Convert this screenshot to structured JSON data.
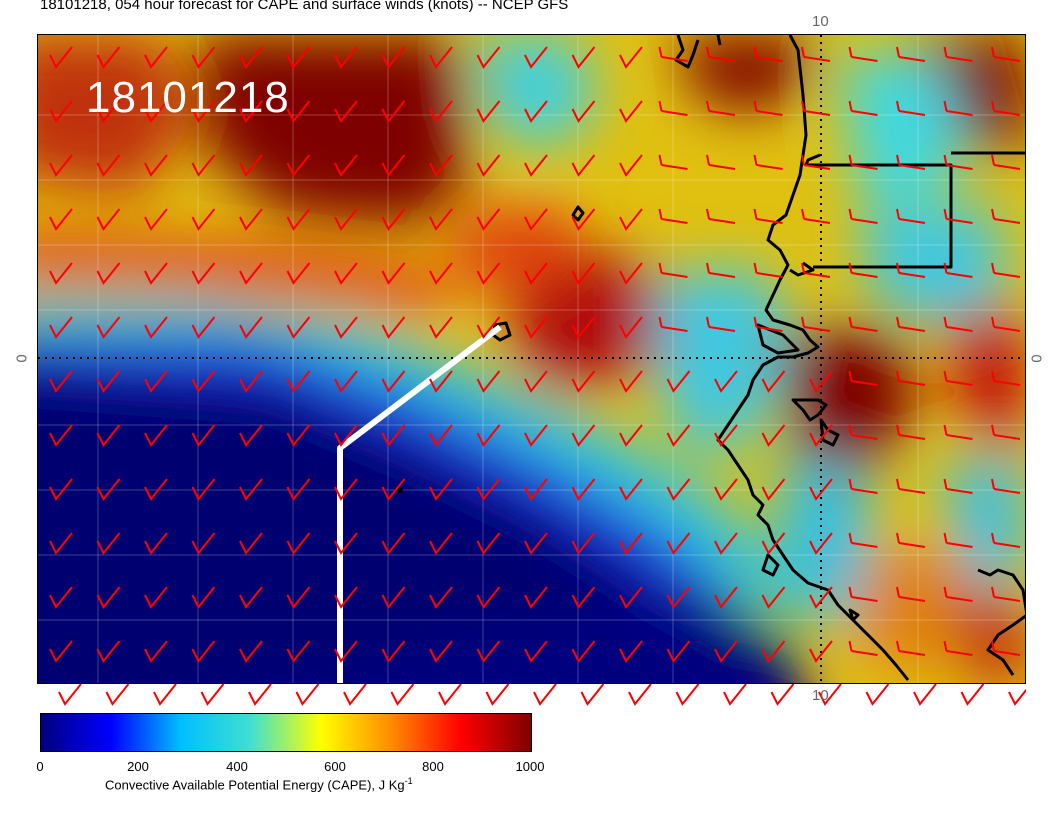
{
  "title": "18101218, 054 hour forecast for CAPE and surface winds (knots) -- NCEP GFS",
  "date_stamp": "18101218",
  "axis_labels": {
    "top_lon": "10",
    "bottom_lon": "10",
    "left_lat": "0",
    "right_lat": "0"
  },
  "colorbar": {
    "ticks": [
      "0",
      "200",
      "400",
      "600",
      "800",
      "1000"
    ],
    "caption_main": "Convective Available Potential Energy (CAPE), J Kg",
    "caption_exp": "-1",
    "colors": [
      "#00007f",
      "#0000ff",
      "#00bfff",
      "#40e0d0",
      "#ffff00",
      "#ff8c00",
      "#ff0000",
      "#7f0000"
    ]
  },
  "colors": {
    "barb": "#ff0000",
    "coast": "#000000",
    "track": "#ffffff"
  }
}
